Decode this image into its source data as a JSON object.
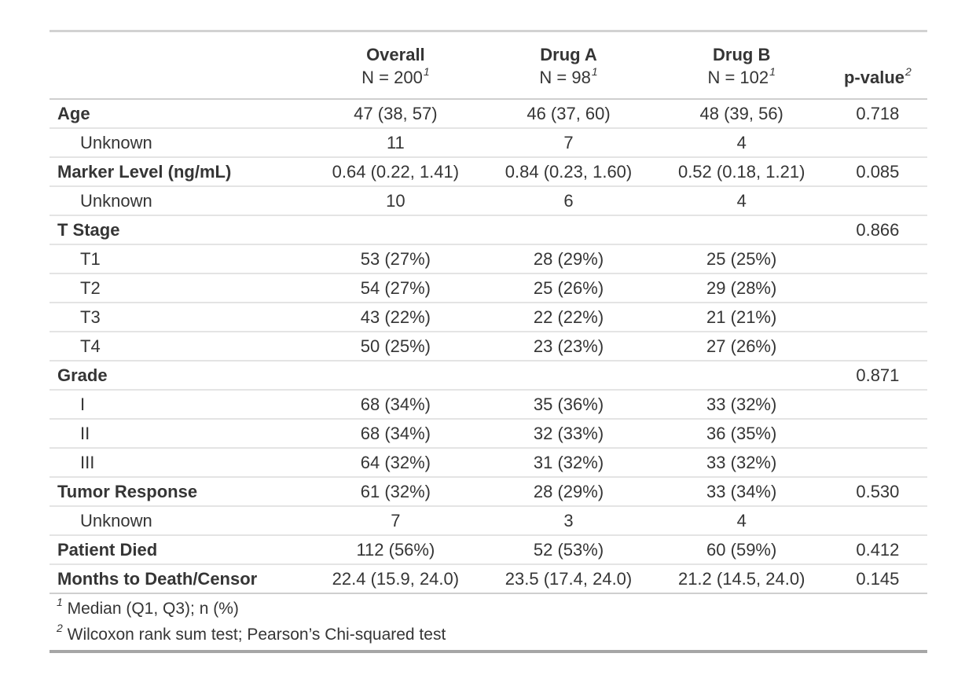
{
  "chart_data": {
    "type": "table",
    "header": {
      "label_column": "",
      "groups": [
        {
          "title": "Overall",
          "n_label": "N = 200",
          "footnote_marker": "1"
        },
        {
          "title": "Drug A",
          "n_label": "N = 98",
          "footnote_marker": "1"
        },
        {
          "title": "Drug B",
          "n_label": "N = 102",
          "footnote_marker": "1"
        }
      ],
      "p_value": {
        "title": "p-value",
        "footnote_marker": "2"
      }
    },
    "rows": [
      {
        "label": "Age",
        "indent": false,
        "overall": "47 (38, 57)",
        "drug_a": "46 (37, 60)",
        "drug_b": "48 (39, 56)",
        "p_value": "0.718"
      },
      {
        "label": "Unknown",
        "indent": true,
        "overall": "11",
        "drug_a": "7",
        "drug_b": "4",
        "p_value": ""
      },
      {
        "label": "Marker Level (ng/mL)",
        "indent": false,
        "overall": "0.64 (0.22, 1.41)",
        "drug_a": "0.84 (0.23, 1.60)",
        "drug_b": "0.52 (0.18, 1.21)",
        "p_value": "0.085"
      },
      {
        "label": "Unknown",
        "indent": true,
        "overall": "10",
        "drug_a": "6",
        "drug_b": "4",
        "p_value": ""
      },
      {
        "label": "T Stage",
        "indent": false,
        "overall": "",
        "drug_a": "",
        "drug_b": "",
        "p_value": "0.866"
      },
      {
        "label": "T1",
        "indent": true,
        "overall": "53 (27%)",
        "drug_a": "28 (29%)",
        "drug_b": "25 (25%)",
        "p_value": ""
      },
      {
        "label": "T2",
        "indent": true,
        "overall": "54 (27%)",
        "drug_a": "25 (26%)",
        "drug_b": "29 (28%)",
        "p_value": ""
      },
      {
        "label": "T3",
        "indent": true,
        "overall": "43 (22%)",
        "drug_a": "22 (22%)",
        "drug_b": "21 (21%)",
        "p_value": ""
      },
      {
        "label": "T4",
        "indent": true,
        "overall": "50 (25%)",
        "drug_a": "23 (23%)",
        "drug_b": "27 (26%)",
        "p_value": ""
      },
      {
        "label": "Grade",
        "indent": false,
        "overall": "",
        "drug_a": "",
        "drug_b": "",
        "p_value": "0.871"
      },
      {
        "label": "I",
        "indent": true,
        "overall": "68 (34%)",
        "drug_a": "35 (36%)",
        "drug_b": "33 (32%)",
        "p_value": ""
      },
      {
        "label": "II",
        "indent": true,
        "overall": "68 (34%)",
        "drug_a": "32 (33%)",
        "drug_b": "36 (35%)",
        "p_value": ""
      },
      {
        "label": "III",
        "indent": true,
        "overall": "64 (32%)",
        "drug_a": "31 (32%)",
        "drug_b": "33 (32%)",
        "p_value": ""
      },
      {
        "label": "Tumor Response",
        "indent": false,
        "overall": "61 (32%)",
        "drug_a": "28 (29%)",
        "drug_b": "33 (34%)",
        "p_value": "0.530"
      },
      {
        "label": "Unknown",
        "indent": true,
        "overall": "7",
        "drug_a": "3",
        "drug_b": "4",
        "p_value": ""
      },
      {
        "label": "Patient Died",
        "indent": false,
        "overall": "112 (56%)",
        "drug_a": "52 (53%)",
        "drug_b": "60 (59%)",
        "p_value": "0.412"
      },
      {
        "label": "Months to Death/Censor",
        "indent": false,
        "overall": "22.4 (15.9, 24.0)",
        "drug_a": "23.5 (17.4, 24.0)",
        "drug_b": "21.2 (14.5, 24.0)",
        "p_value": "0.145"
      }
    ],
    "footnotes": [
      {
        "marker": "1",
        "text": "Median (Q1, Q3); n (%)"
      },
      {
        "marker": "2",
        "text": "Wilcoxon rank sum test; Pearson’s Chi-squared test"
      }
    ],
    "layout": {
      "column_alignment": [
        "left",
        "center",
        "center",
        "center",
        "center"
      ],
      "border_top_color": "#d2d2d2",
      "border_bottom_color": "#a6a6a6",
      "row_separator_color": "#e4e4e4",
      "section_separator_color": "#cfcfcf",
      "text_color": "#353535"
    }
  }
}
